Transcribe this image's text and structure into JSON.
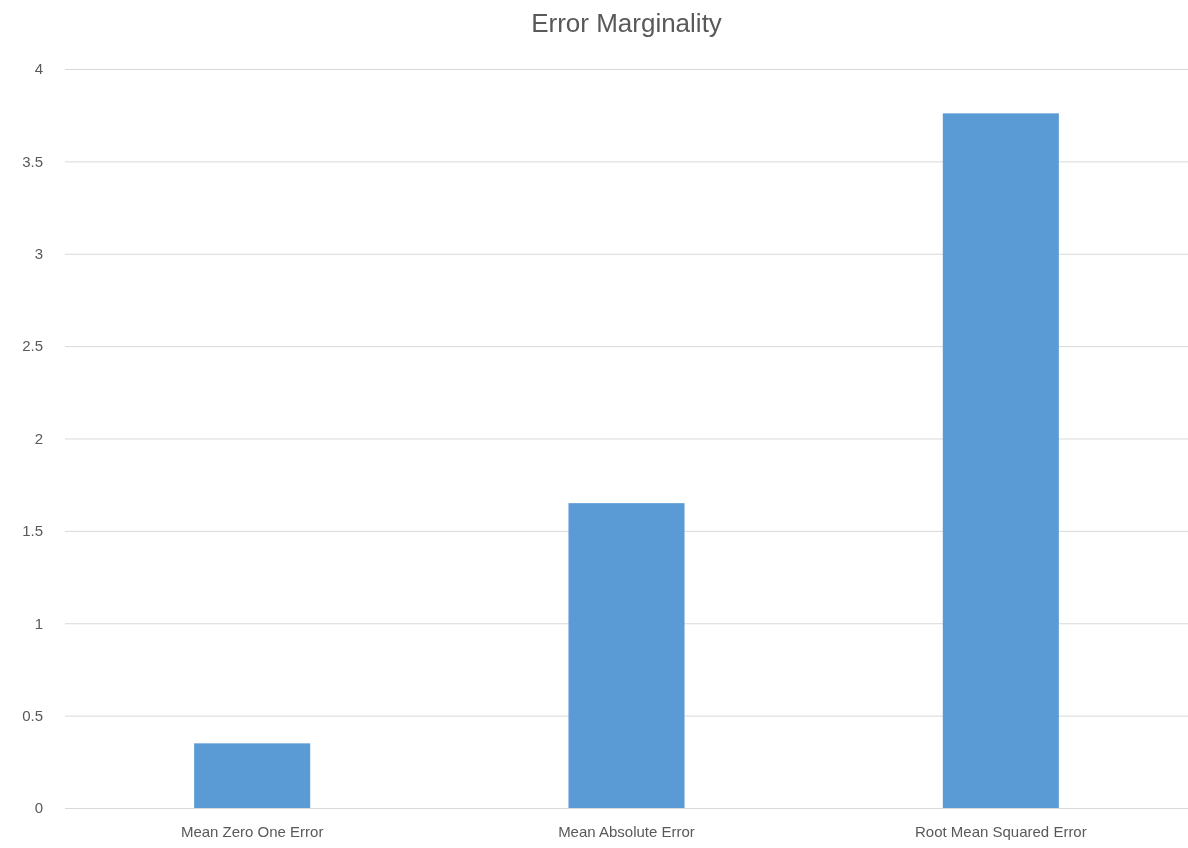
{
  "chart_data": {
    "type": "bar",
    "title": "Error Marginality",
    "categories": [
      "Mean Zero One Error",
      "Mean Absolute Error",
      "Root Mean Squared Error"
    ],
    "values": [
      0.35,
      1.65,
      3.76
    ],
    "color": "#5b9bd5",
    "ylim": [
      0,
      4
    ],
    "yticks": [
      0,
      0.5,
      1,
      1.5,
      2,
      2.5,
      3,
      3.5,
      4
    ],
    "grid": "y"
  }
}
